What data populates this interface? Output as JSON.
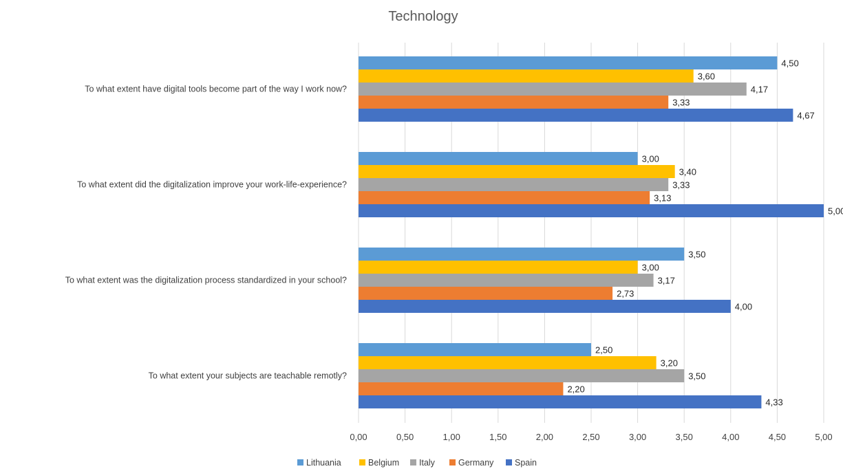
{
  "chart_data": {
    "type": "bar",
    "orientation": "horizontal",
    "title": "Technology",
    "xlabel": "",
    "ylabel": "",
    "xlim": [
      0,
      5
    ],
    "x_ticks": [
      "0,00",
      "0,50",
      "1,00",
      "1,50",
      "2,00",
      "2,50",
      "3,00",
      "3,50",
      "4,00",
      "4,50",
      "5,00"
    ],
    "grid": true,
    "legend_position": "bottom",
    "categories": [
      "To what extent have digital tools become part of the way I work now?",
      "To what extent did the digitalization improve your work-life-experience?",
      "To what extent was the digitalization process standardized in your school?",
      "To what extent your subjects are teachable remotly?"
    ],
    "series": [
      {
        "name": "Lithuania",
        "color": "#5b9bd5",
        "values": [
          4.5,
          3.0,
          3.5,
          2.5
        ],
        "labels": [
          "4,50",
          "3,00",
          "3,50",
          "2,50"
        ]
      },
      {
        "name": "Belgium",
        "color": "#ffc000",
        "values": [
          3.6,
          3.4,
          3.0,
          3.2
        ],
        "labels": [
          "3,60",
          "3,40",
          "3,00",
          "3,20"
        ]
      },
      {
        "name": "Italy",
        "color": "#a5a5a5",
        "values": [
          4.17,
          3.33,
          3.17,
          3.5
        ],
        "labels": [
          "4,17",
          "3,33",
          "3,17",
          "3,50"
        ]
      },
      {
        "name": "Germany",
        "color": "#ed7d31",
        "values": [
          3.33,
          3.13,
          2.73,
          2.2
        ],
        "labels": [
          "3,33",
          "3,13",
          "2,73",
          "2,20"
        ]
      },
      {
        "name": "Spain",
        "color": "#4472c4",
        "values": [
          4.67,
          5.0,
          4.0,
          4.33
        ],
        "labels": [
          "4,67",
          "5,00",
          "4,00",
          "4,33"
        ]
      }
    ]
  }
}
